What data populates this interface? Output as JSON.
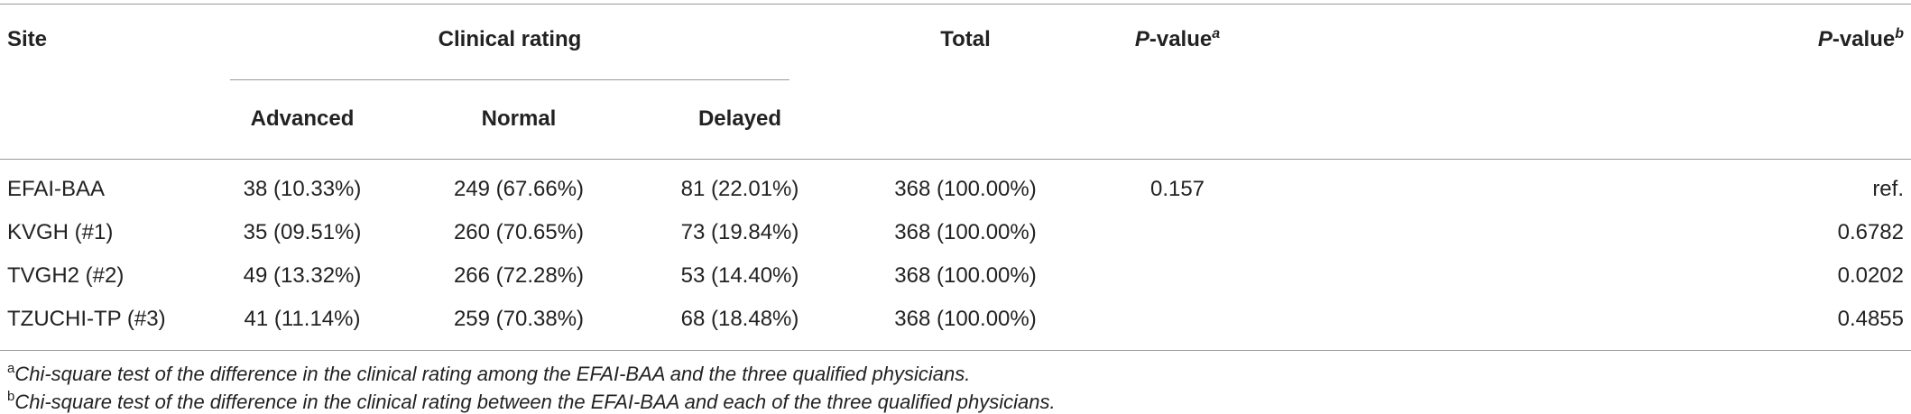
{
  "table": {
    "header": {
      "site": "Site",
      "group": "Clinical rating",
      "columns": [
        "Advanced",
        "Normal",
        "Delayed"
      ],
      "total": "Total",
      "p_a": {
        "text": "P-value",
        "sup": "a"
      },
      "p_b": {
        "text": "P-value",
        "sup": "b"
      }
    },
    "rows": [
      {
        "site": "EFAI-BAA",
        "advanced": "38 (10.33%)",
        "normal": "249 (67.66%)",
        "delayed": "81 (22.01%)",
        "total": "368 (100.00%)",
        "p_a": "0.157",
        "p_b": "ref."
      },
      {
        "site": "KVGH (#1)",
        "advanced": "35 (09.51%)",
        "normal": "260 (70.65%)",
        "delayed": "73 (19.84%)",
        "total": "368 (100.00%)",
        "p_b": "0.6782"
      },
      {
        "site": "TVGH2 (#2)",
        "advanced": "49 (13.32%)",
        "normal": "266 (72.28%)",
        "delayed": "53 (14.40%)",
        "total": "368 (100.00%)",
        "p_b": "0.0202"
      },
      {
        "site": "TZUCHI-TP (#3)",
        "advanced": "41 (11.14%)",
        "normal": "259 (70.38%)",
        "delayed": "68 (18.48%)",
        "total": "368 (100.00%)",
        "p_b": "0.4855"
      }
    ]
  },
  "footnotes": [
    {
      "mark": "a",
      "text": "Chi-square test of the difference in the clinical rating among the EFAI-BAA and the three qualified physicians."
    },
    {
      "mark": "b",
      "text": "Chi-square test of the difference in the clinical rating between the EFAI-BAA and each of the three qualified physicians."
    }
  ]
}
